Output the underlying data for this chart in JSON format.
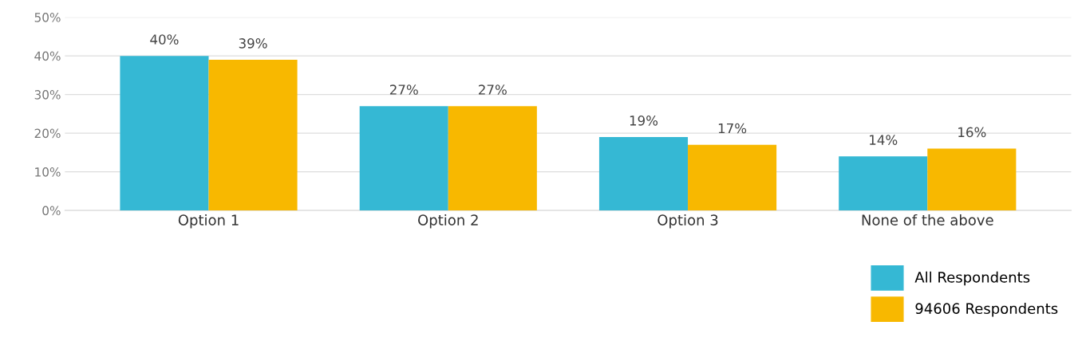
{
  "chart_data": {
    "type": "bar",
    "categories": [
      "Option 1",
      "Option 2",
      "Option 3",
      "None of the above"
    ],
    "series": [
      {
        "name": "All Respondents",
        "color": "#35b8d4",
        "values": [
          40,
          27,
          19,
          14
        ],
        "value_labels": [
          "40%",
          "27%",
          "19%",
          "14%"
        ]
      },
      {
        "name": "94606 Respondents",
        "color": "#f8b800",
        "values": [
          39,
          27,
          17,
          16
        ],
        "value_labels": [
          "39%",
          "27%",
          "17%",
          "16%"
        ]
      }
    ],
    "ylim": [
      0,
      50
    ],
    "yticks": [
      {
        "value": 0,
        "label": "0%"
      },
      {
        "value": 10,
        "label": "10%"
      },
      {
        "value": 20,
        "label": "20%"
      },
      {
        "value": 30,
        "label": "30%"
      },
      {
        "value": 40,
        "label": "40%"
      },
      {
        "value": 50,
        "label": "50%"
      }
    ],
    "grid": "y",
    "legend": "bottom right"
  }
}
